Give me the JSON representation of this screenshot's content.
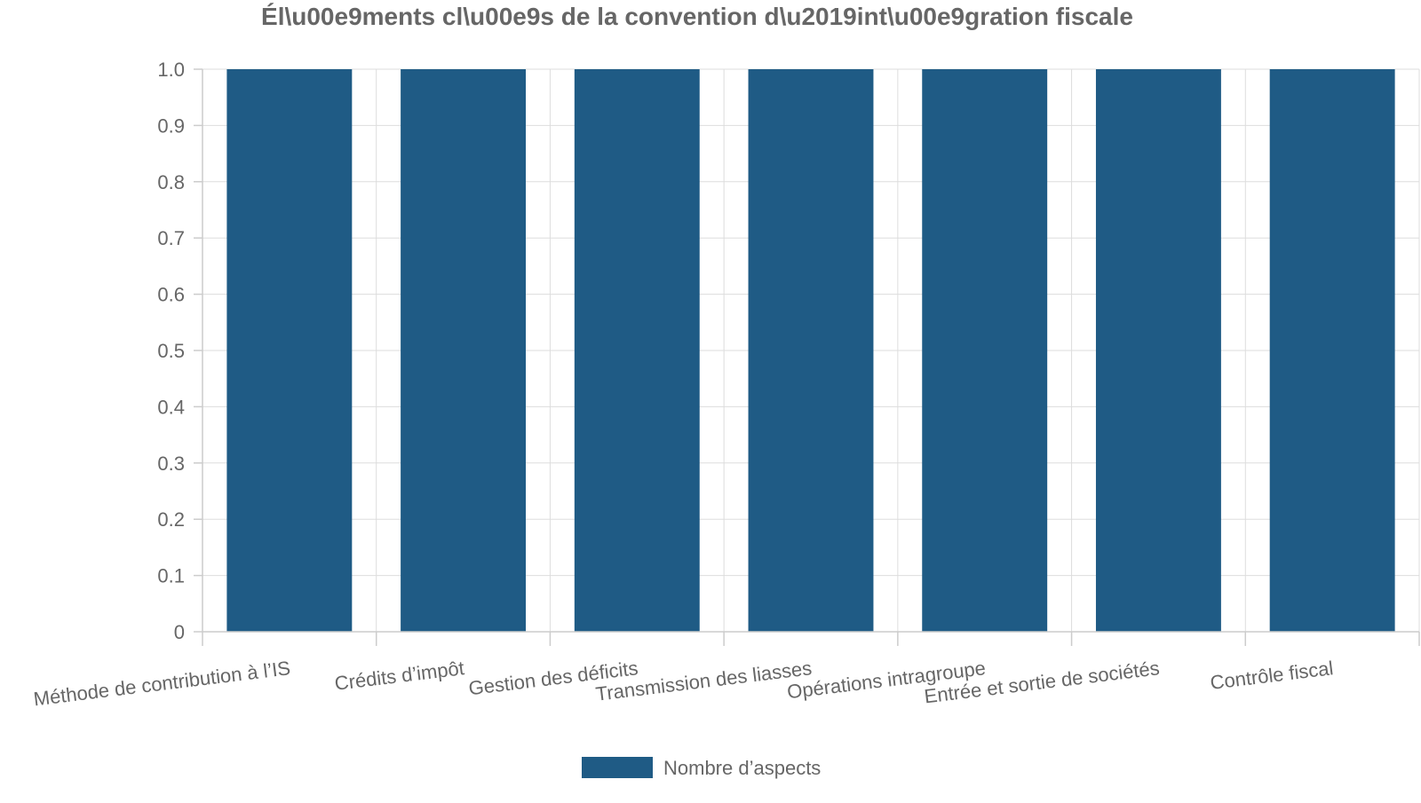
{
  "chart_data": {
    "type": "bar",
    "title": "Él\\u00e9ments cl\\u00e9s de la convention d\\u2019int\\u00e9gration fiscale",
    "xlabel": "",
    "ylabel": "",
    "categories": [
      "Méthode de contribution à l’IS",
      "Crédits d’impôt",
      "Gestion des déficits",
      "Transmission des liasses",
      "Opérations intragroupe",
      "Entrée et sortie de sociétés",
      "Contrôle fiscal"
    ],
    "series": [
      {
        "name": "Nombre d’aspects",
        "values": [
          1,
          1,
          1,
          1,
          1,
          1,
          1
        ]
      }
    ],
    "ylim": [
      0,
      1
    ],
    "yticks": [
      "0",
      "0.1",
      "0.2",
      "0.3",
      "0.4",
      "0.5",
      "0.6",
      "0.7",
      "0.8",
      "0.9",
      "1.0"
    ],
    "grid": true,
    "legend_position": "bottom-center",
    "colors": {
      "bar": "#1f5b85",
      "text": "#666666",
      "grid": "#dddddd"
    }
  }
}
